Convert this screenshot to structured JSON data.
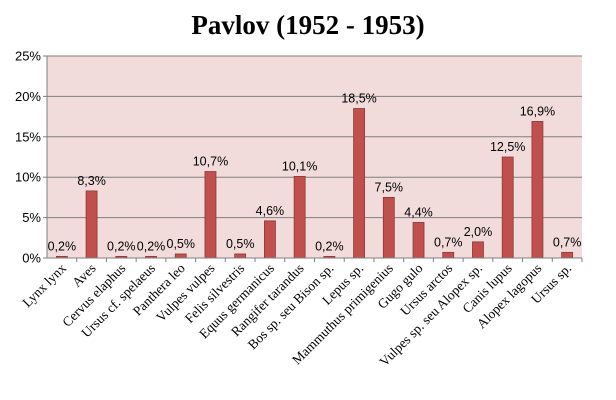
{
  "chart_data": {
    "type": "bar",
    "title": "Pavlov (1952 - 1953)",
    "xlabel": "",
    "ylabel": "",
    "ylim": [
      0,
      25
    ],
    "yticks": [
      "0%",
      "5%",
      "10%",
      "15%",
      "20%",
      "25%"
    ],
    "grid": true,
    "legend": "none",
    "categories": [
      "Lynx lynx",
      "Aves",
      "Cervus elaphus",
      "Ursus cf. spelaeus",
      "Panthera leo",
      "Vulpes vulpes",
      "Felis silvestris",
      "Equus germanicus",
      "Rangifer tarandus",
      "Bos sp. seu Bison sp.",
      "Lepus sp.",
      "Mammuthus primigenius",
      "Gugo gulo",
      "Ursus arctos",
      "Vulpes sp. seu Alopex sp.",
      "Canis lupus",
      "Alopex lagopus",
      "Ursus sp."
    ],
    "values": [
      0.2,
      8.3,
      0.2,
      0.2,
      0.5,
      10.7,
      0.5,
      4.6,
      10.1,
      0.2,
      18.5,
      7.5,
      4.4,
      0.7,
      2.0,
      12.5,
      16.9,
      0.7
    ],
    "data_labels": [
      "0,2%",
      "8,3%",
      "0,2%",
      "0,2%",
      "0,5%",
      "10,7%",
      "0,5%",
      "4,6%",
      "10,1%",
      "0,2%",
      "18,5%",
      "7,5%",
      "4,4%",
      "0,7%",
      "2,0%",
      "12,5%",
      "16,9%",
      "0,7%"
    ],
    "colors": {
      "plot_background": "#f2dcdb",
      "bar_fill": "#c0504d",
      "bar_stroke": "#8c3836",
      "gridline": "#7f7f7f",
      "axis": "#7f7f7f"
    }
  }
}
